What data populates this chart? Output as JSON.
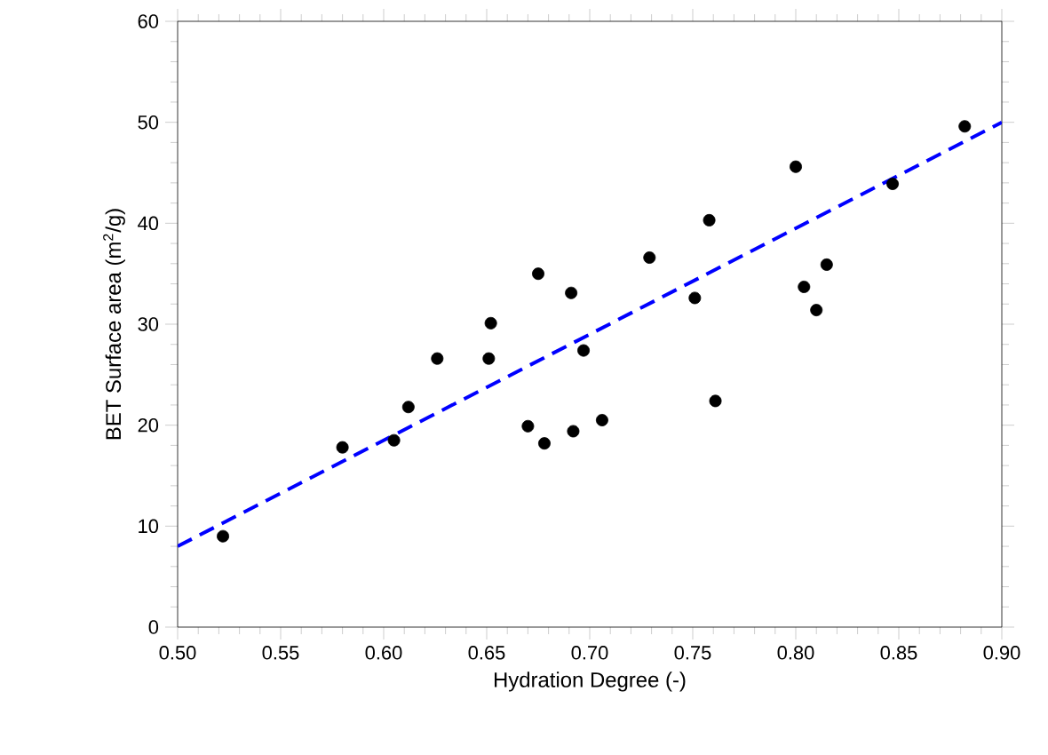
{
  "chart_data": {
    "type": "scatter",
    "xlabel": "Hydration Degree (-)",
    "ylabel": "BET Surface area (m$^{2}$/g)",
    "xlim": [
      0.5,
      0.9
    ],
    "ylim": [
      0,
      60
    ],
    "xticks": [
      {
        "value": 0.5,
        "label": "0.50"
      },
      {
        "value": 0.55,
        "label": "0.55"
      },
      {
        "value": 0.6,
        "label": "0.60"
      },
      {
        "value": 0.65,
        "label": "0.65"
      },
      {
        "value": 0.7,
        "label": "0.70"
      },
      {
        "value": 0.75,
        "label": "0.75"
      },
      {
        "value": 0.8,
        "label": "0.80"
      },
      {
        "value": 0.85,
        "label": "0.85"
      },
      {
        "value": 0.9,
        "label": "0.90"
      }
    ],
    "yticks": [
      0,
      10,
      20,
      30,
      40,
      50,
      60
    ],
    "grid": false,
    "series": [
      {
        "color": "#000000",
        "marker": "circle",
        "x": [
          0.522,
          0.58,
          0.605,
          0.612,
          0.626,
          0.651,
          0.652,
          0.67,
          0.675,
          0.678,
          0.691,
          0.692,
          0.697,
          0.706,
          0.729,
          0.751,
          0.758,
          0.761,
          0.8,
          0.804,
          0.81,
          0.815,
          0.847,
          0.882
        ],
        "values": [
          9.0,
          17.8,
          18.5,
          21.8,
          26.6,
          26.6,
          30.1,
          19.9,
          35.0,
          18.2,
          33.1,
          19.4,
          27.4,
          20.5,
          36.6,
          32.6,
          40.3,
          22.4,
          45.6,
          33.7,
          31.4,
          35.9,
          43.9,
          49.6
        ]
      },
      {
        "type": "line",
        "color": "#0000ff",
        "line_style": "dashed",
        "marker": "none",
        "x": [
          0.5,
          0.9
        ],
        "values": [
          8.0,
          50.0
        ]
      }
    ]
  }
}
